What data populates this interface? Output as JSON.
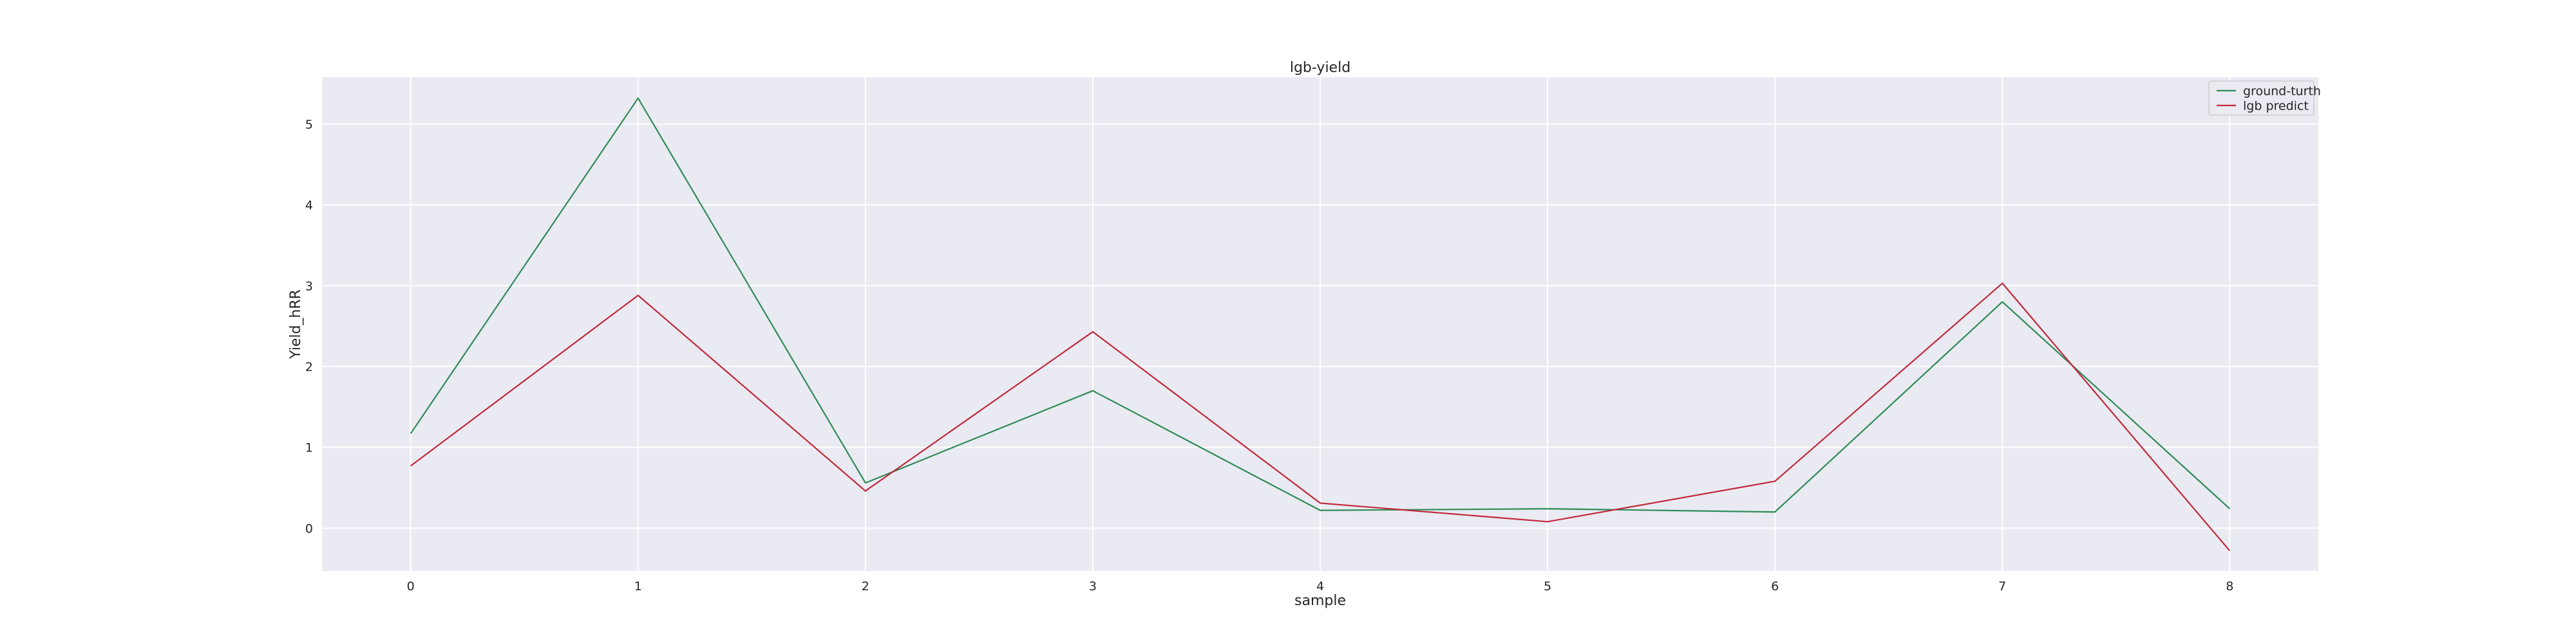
{
  "chart_data": {
    "type": "line",
    "title": "lgb-yield",
    "xlabel": "sample",
    "ylabel": "Yield_hRR",
    "x": [
      0,
      1,
      2,
      3,
      4,
      5,
      6,
      7,
      8
    ],
    "x_tick_labels": [
      "0",
      "1",
      "2",
      "3",
      "4",
      "5",
      "6",
      "7",
      "8"
    ],
    "y_tick_labels": [
      "0",
      "1",
      "2",
      "3",
      "4",
      "5"
    ],
    "xlim": [
      -0.39,
      8.39
    ],
    "ylim": [
      -0.53,
      5.58
    ],
    "grid": true,
    "legend_position": "top-right",
    "series": [
      {
        "name": "ground-turth",
        "color": "#2e8b57",
        "values": [
          1.17,
          5.32,
          0.56,
          1.7,
          0.22,
          0.24,
          0.2,
          2.8,
          0.24
        ]
      },
      {
        "name": "lgb predict",
        "color": "#c0283c",
        "values": [
          0.77,
          2.88,
          0.46,
          2.43,
          0.31,
          0.08,
          0.58,
          3.03,
          -0.28
        ]
      }
    ]
  }
}
